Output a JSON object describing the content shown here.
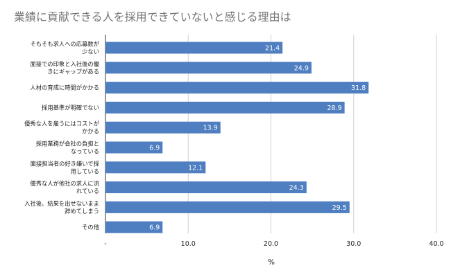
{
  "chart_data": {
    "type": "bar",
    "orientation": "horizontal",
    "title": "業績に貢献できる人を採用できていないと感じる理由は",
    "xlabel": "%",
    "ylabel": "",
    "categories": [
      [
        "そもそも求人への応募数が",
        "少ない"
      ],
      [
        "面接での印象と入社後の働",
        "きにギャップがある"
      ],
      [
        "人材の育成に時間がかかる"
      ],
      [
        "採用基準が明確でない"
      ],
      [
        "優秀な人を雇うにはコストが",
        "かかる"
      ],
      [
        "採用業務が会社の負担と",
        "なっている"
      ],
      [
        "面接担当者の好き嫌いで採",
        "用している"
      ],
      [
        "優秀な人が他社の求人に流",
        "れている"
      ],
      [
        "入社後、結果を出せないまま",
        "辞めてしまう"
      ],
      [
        "その他"
      ]
    ],
    "values": [
      21.4,
      24.9,
      31.8,
      28.9,
      13.9,
      6.9,
      12.1,
      24.3,
      29.5,
      6.9
    ],
    "xlim": [
      0,
      40
    ],
    "ticks": [
      0,
      10,
      20,
      30,
      40
    ],
    "tick_labels": [
      "-",
      "10.0",
      "20.0",
      "30.0",
      "40.0"
    ],
    "bar_color": "#4f7fc1",
    "grid": true,
    "legend": "none"
  }
}
